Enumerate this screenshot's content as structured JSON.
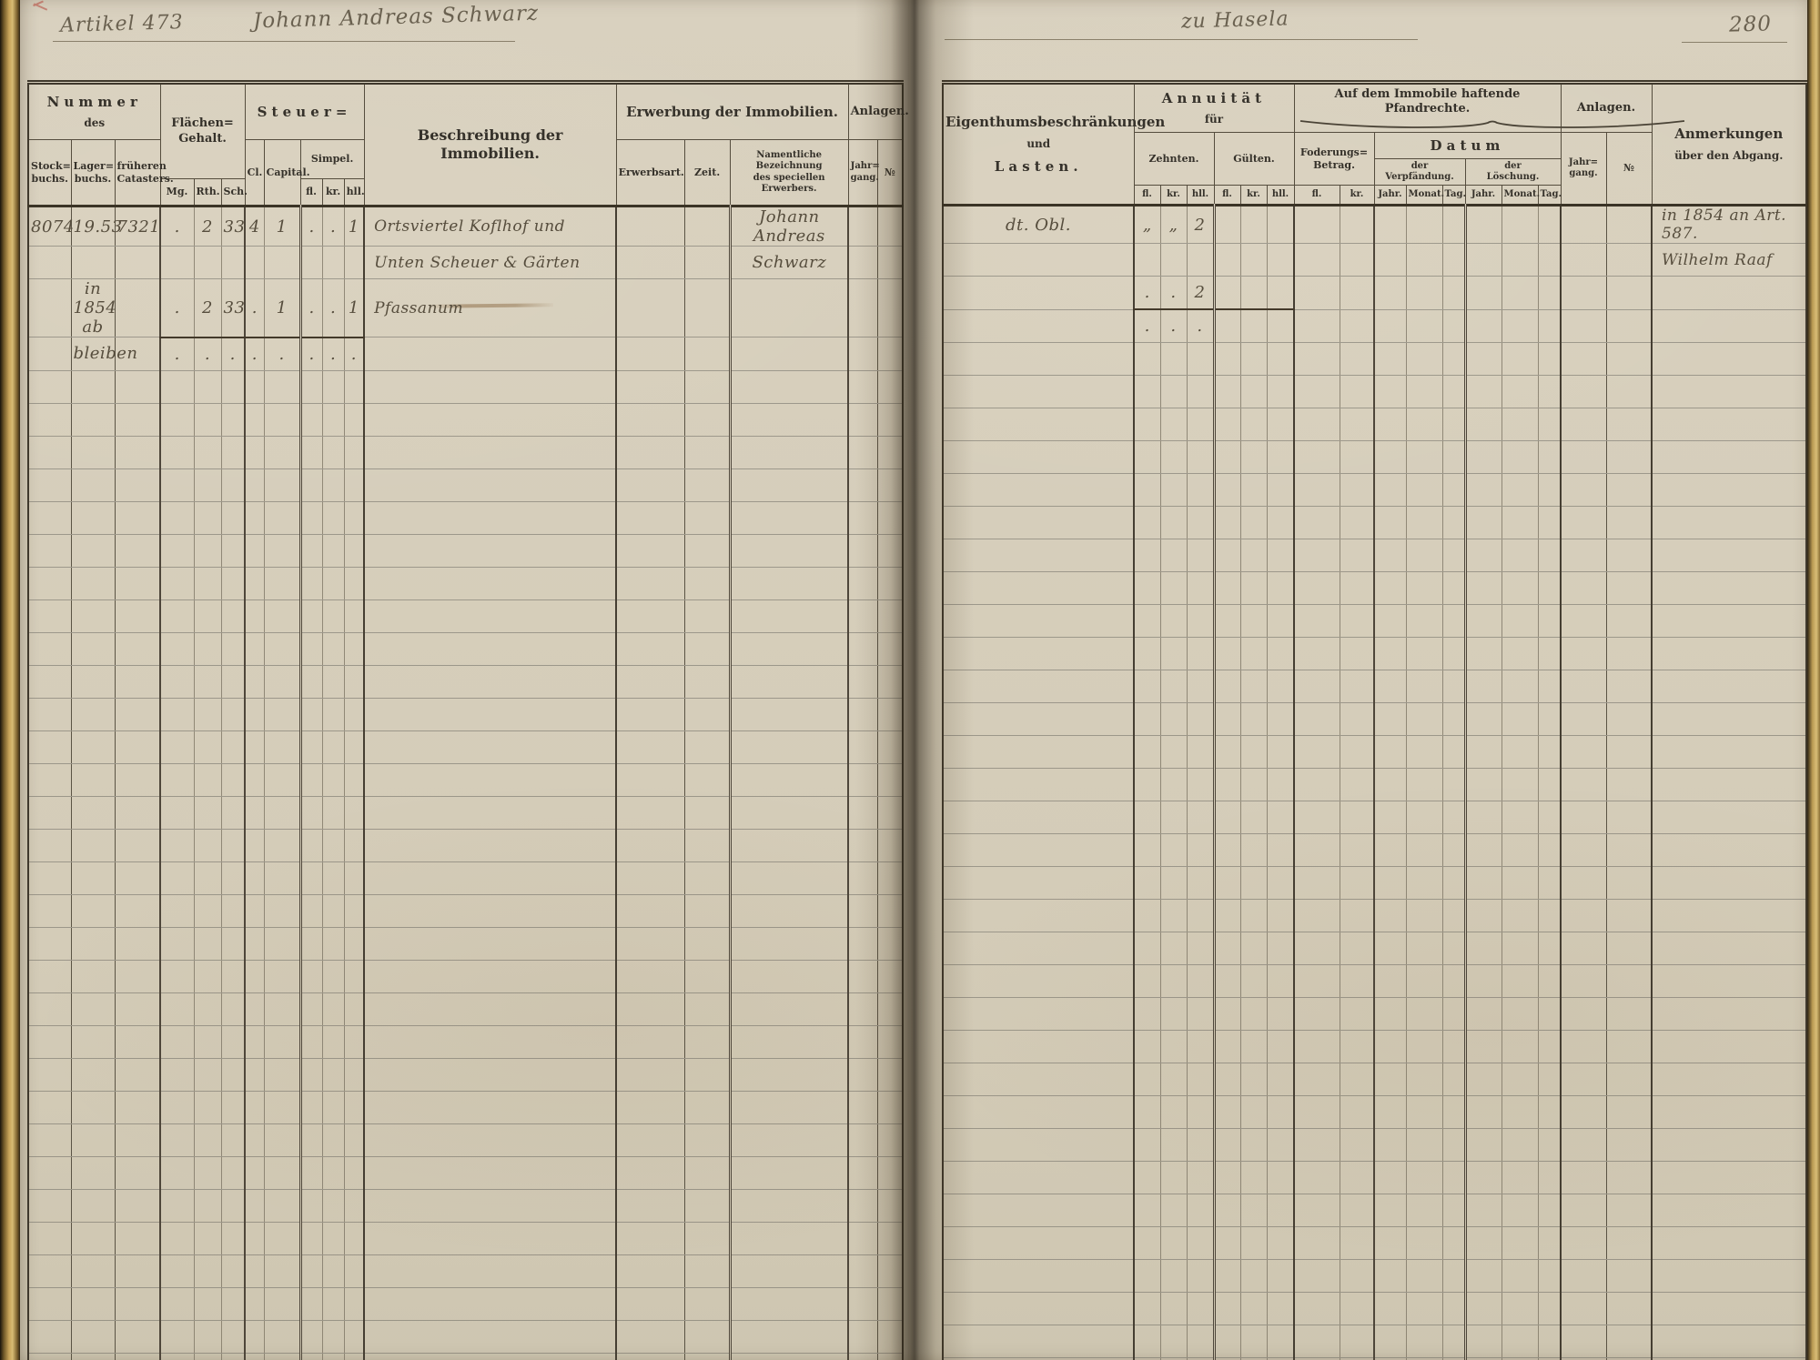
{
  "colors": {
    "paper": "#d9d1bf",
    "line-dark": "#3f382c",
    "line-light": "#978f7d",
    "ink": "#564d3d",
    "edge-gold": "#c6a258"
  },
  "annotations": {
    "article": "Artikel 473",
    "owner": "Johann Andreas Schwarz",
    "place": "zu Hasela",
    "page_number": "280"
  },
  "left_table": {
    "headers": {
      "nummer_title": "Nummer",
      "nummer_sub": "des",
      "stockbuchs": "Stock=\nbuchs.",
      "lagerbuchs": "Lager=\nbuchs.",
      "cataster": "früheren\nCatasters.",
      "flaechen": "Flächen=\nGehalt.",
      "mg": "Mg.",
      "rth": "Rth.",
      "sch": "Sch.",
      "steuer": "Steuer=",
      "cl": "Cl.",
      "capital": "Capital.",
      "simpel": "Simpel.",
      "fl": "fl.",
      "kr": "kr.",
      "hll": "hll.",
      "beschreibung": "Beschreibung der Immobilien.",
      "erwerbung": "Erwerbung der Immobilien.",
      "erwerbsart": "Erwerbsart.",
      "zeit": "Zeit.",
      "erwerber": "Namentliche Bezeichnung\ndes speciellen Erwerbers.",
      "anlagen": "Anlagen.",
      "jahrgang": "Jahr=\ngang.",
      "no": "№"
    },
    "columns": [
      "stockbuchs",
      "lagerbuchs",
      "cataster",
      "mg",
      "rth",
      "sch",
      "cl",
      "capital",
      "fl",
      "kr",
      "hll",
      "beschreibung",
      "erwerbsart",
      "zeit",
      "erwerber",
      "jahrgang",
      "no"
    ],
    "hand_rows": [
      {
        "cells": {
          "stockbuchs": "8074",
          "lagerbuchs": "19.53",
          "cataster": "7321",
          "mg": ".",
          "rth": "2",
          "sch": "33",
          "cl": "4",
          "capital": "1",
          "fl": ".",
          "kr": ".",
          "hll": "1",
          "beschreibung": "Ortsviertel Koflhof und",
          "erwerber": "Johann Andreas"
        }
      },
      {
        "cells": {
          "beschreibung": "Unten Scheuer & Gärten",
          "erwerber": "Schwarz"
        }
      },
      {
        "cells": {
          "lagerbuchs": "in 1854 ab",
          "mg": ".",
          "rth": "2",
          "sch": "33",
          "cl": ".",
          "capital": "1",
          "fl": ".",
          "kr": ".",
          "hll": "1",
          "beschreibung": "Pfassanum"
        },
        "sum": [
          "mg",
          "rth",
          "sch",
          "cl",
          "capital",
          "fl",
          "kr",
          "hll"
        ]
      },
      {
        "cells": {
          "lagerbuchs": "bleiben",
          "mg": ".",
          "rth": ".",
          "sch": ".",
          "cl": ".",
          "capital": ".",
          "fl": ".",
          "kr": ".",
          "hll": "."
        }
      }
    ],
    "empty_rows": 32
  },
  "right_table": {
    "headers": {
      "eigenthums_1": "Eigenthumsbeschränkungen",
      "eigenthums_2": "und",
      "eigenthums_3": "Lasten.",
      "annuitaet": "Annuität",
      "fuer": "für",
      "zehnten": "Zehnten.",
      "guelten": "Gülten.",
      "fl": "fl.",
      "kr": "kr.",
      "hll": "hll.",
      "pfandrechte": "Auf dem Immobile haftende Pfandrechte.",
      "foderung": "Foderungs=\nBetrag.",
      "datum": "Datum",
      "verpfaendung": "der\nVerpfändung.",
      "loeschung": "der\nLöschung.",
      "jahr": "Jahr.",
      "monat": "Monat.",
      "tag": "Tag.",
      "anlagen": "Anlagen.",
      "jahrgang": "Jahr=\ngang.",
      "no": "№",
      "anmerkungen_1": "Anmerkungen",
      "anmerkungen_2": "über den Abgang."
    },
    "columns": [
      "lasten",
      "z_fl",
      "z_kr",
      "z_hll",
      "g_fl",
      "g_kr",
      "g_hll",
      "f_fl",
      "f_kr",
      "v_jahr",
      "v_monat",
      "v_tag",
      "l_jahr",
      "l_monat",
      "l_tag",
      "jahrgang2",
      "no",
      "anmerkungen"
    ],
    "hand_rows": [
      {
        "cells": {
          "lasten": "dt. Obl.",
          "z_fl": "„",
          "z_kr": "„",
          "z_hll": "2",
          "anmerkungen": "in 1854 an Art. 587."
        }
      },
      {
        "cells": {
          "anmerkungen": "Wilhelm Raaf"
        }
      },
      {
        "cells": {
          "z_fl": ".",
          "z_kr": ".",
          "z_hll": "2"
        },
        "sum": [
          "z_fl",
          "z_kr",
          "z_hll",
          "g_fl",
          "g_kr",
          "g_hll"
        ]
      },
      {
        "cells": {
          "z_fl": ".",
          "z_kr": ".",
          "z_hll": "."
        }
      }
    ],
    "empty_rows": 32
  }
}
